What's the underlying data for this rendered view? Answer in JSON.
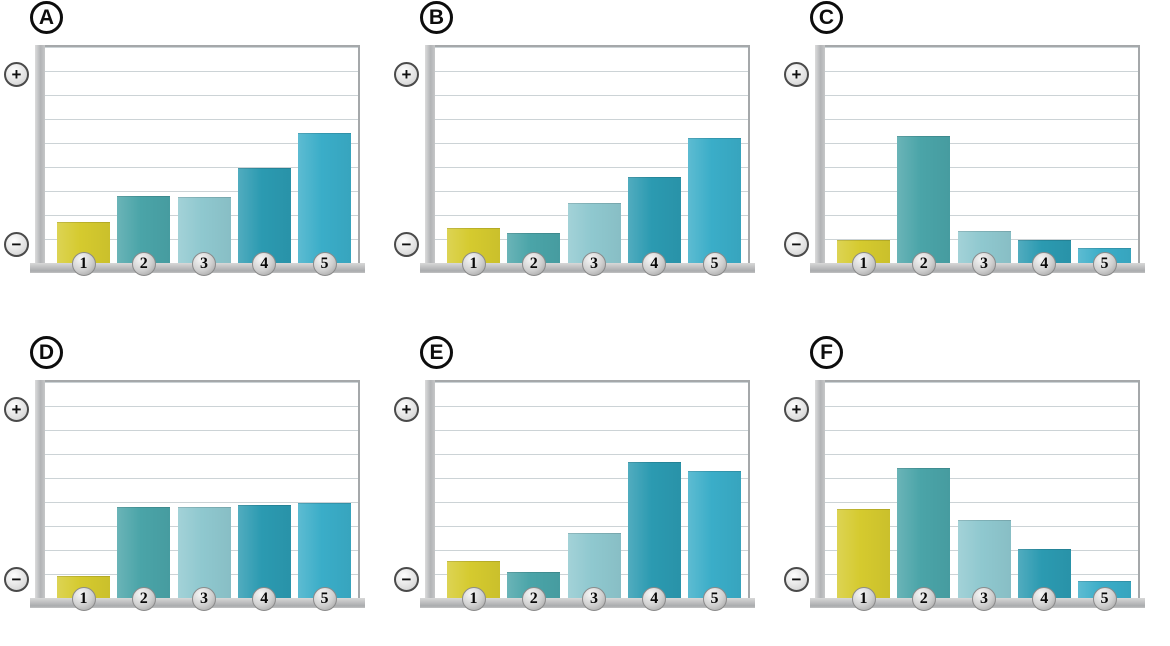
{
  "axis": {
    "plus_label": "+",
    "minus_label": "−"
  },
  "bar_palette": [
    "#d5ca2e",
    "#4aa4a8",
    "#8fc8cf",
    "#2b9ab1",
    "#3aadc8"
  ],
  "chart_data": [
    {
      "type": "bar",
      "panel_label": "A",
      "categories": [
        "1",
        "2",
        "3",
        "4",
        "5"
      ],
      "values_pct": [
        19,
        31,
        30.5,
        44,
        60
      ],
      "ylim": [
        0,
        100
      ],
      "y_axis_top": "+",
      "y_axis_bottom": "−",
      "gridlines": 8,
      "grid": "horizontal",
      "bar_colors": [
        "#d5ca2e",
        "#4aa4a8",
        "#8fc8cf",
        "#2b9ab1",
        "#3aadc8"
      ],
      "title": "",
      "xlabel": "",
      "ylabel": ""
    },
    {
      "type": "bar",
      "panel_label": "B",
      "categories": [
        "1",
        "2",
        "3",
        "4",
        "5"
      ],
      "values_pct": [
        16,
        14,
        28,
        40,
        58
      ],
      "ylim": [
        0,
        100
      ],
      "y_axis_top": "+",
      "y_axis_bottom": "−",
      "gridlines": 8,
      "grid": "horizontal",
      "bar_colors": [
        "#d5ca2e",
        "#4aa4a8",
        "#8fc8cf",
        "#2b9ab1",
        "#3aadc8"
      ],
      "title": "",
      "xlabel": "",
      "ylabel": ""
    },
    {
      "type": "bar",
      "panel_label": "C",
      "categories": [
        "1",
        "2",
        "3",
        "4",
        "5"
      ],
      "values_pct": [
        10.5,
        59,
        15,
        10.5,
        7
      ],
      "ylim": [
        0,
        100
      ],
      "y_axis_top": "+",
      "y_axis_bottom": "−",
      "gridlines": 8,
      "grid": "horizontal",
      "bar_colors": [
        "#d5ca2e",
        "#4aa4a8",
        "#8fc8cf",
        "#2b9ab1",
        "#3aadc8"
      ],
      "title": "",
      "xlabel": "",
      "ylabel": ""
    },
    {
      "type": "bar",
      "panel_label": "D",
      "categories": [
        "1",
        "2",
        "3",
        "4",
        "5"
      ],
      "values_pct": [
        10,
        42,
        42,
        43,
        44
      ],
      "ylim": [
        0,
        100
      ],
      "y_axis_top": "+",
      "y_axis_bottom": "−",
      "gridlines": 8,
      "grid": "horizontal",
      "bar_colors": [
        "#d5ca2e",
        "#4aa4a8",
        "#8fc8cf",
        "#2b9ab1",
        "#3aadc8"
      ],
      "title": "",
      "xlabel": "",
      "ylabel": ""
    },
    {
      "type": "bar",
      "panel_label": "E",
      "categories": [
        "1",
        "2",
        "3",
        "4",
        "5"
      ],
      "values_pct": [
        17,
        12,
        30,
        63,
        59
      ],
      "ylim": [
        0,
        100
      ],
      "y_axis_top": "+",
      "y_axis_bottom": "−",
      "gridlines": 8,
      "grid": "horizontal",
      "bar_colors": [
        "#d5ca2e",
        "#4aa4a8",
        "#8fc8cf",
        "#2b9ab1",
        "#3aadc8"
      ],
      "title": "",
      "xlabel": "",
      "ylabel": ""
    },
    {
      "type": "bar",
      "panel_label": "F",
      "categories": [
        "1",
        "2",
        "3",
        "4",
        "5"
      ],
      "values_pct": [
        41,
        60,
        36,
        22.5,
        8
      ],
      "ylim": [
        0,
        100
      ],
      "y_axis_top": "+",
      "y_axis_bottom": "−",
      "gridlines": 8,
      "grid": "horizontal",
      "bar_colors": [
        "#d5ca2e",
        "#4aa4a8",
        "#8fc8cf",
        "#2b9ab1",
        "#3aadc8"
      ],
      "title": "",
      "xlabel": "",
      "ylabel": ""
    }
  ]
}
